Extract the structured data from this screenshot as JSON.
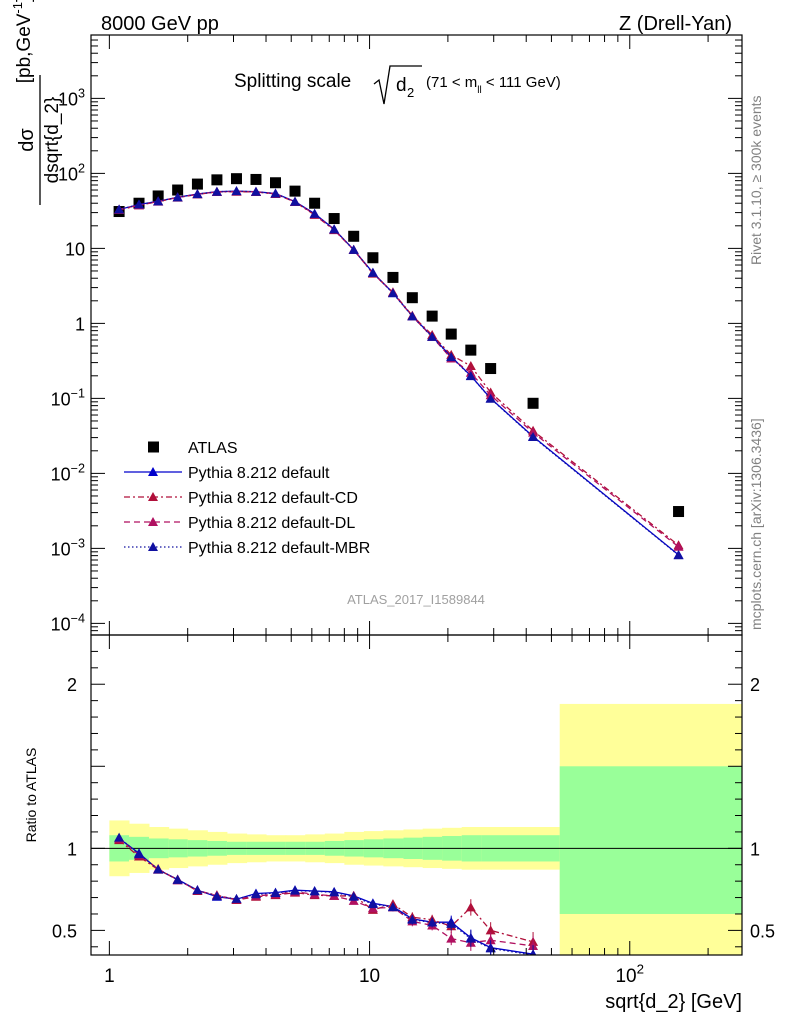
{
  "header": {
    "left": "8000 GeV pp",
    "right": "Z (Drell-Yan)"
  },
  "plot_title": {
    "main": "Splitting scale",
    "radicand": "d",
    "radicand_sub": "2",
    "range_pre": "(71 < m",
    "range_sub": "ll",
    "range_post": " < 111 GeV)"
  },
  "side_labels": {
    "rivet": "Rivet 3.1.10, ≥ 300k events",
    "mcplots": "mcplots.cern.ch [arXiv:1306.3436]"
  },
  "watermark": "ATLAS_2017_I1589844",
  "y_label_top": {
    "numerator": "dσ",
    "denominator": "dsqrt{d_2}",
    "units_pre": "[pb,GeV",
    "units_sup": "-1",
    "units_post": "]"
  },
  "y_label_bottom": "Ratio to ATLAS",
  "x_label": "sqrt{d_2} [GeV]",
  "colors": {
    "atlas": "#000000",
    "default": "#0000cc",
    "cd": "#b0103a",
    "dl": "#b01060",
    "mbr": "#1010a0",
    "band_inner": "#99ff99",
    "band_outer": "#ffff99"
  },
  "legend": [
    {
      "label": "ATLAS"
    },
    {
      "label": "Pythia 8.212 default"
    },
    {
      "label": "Pythia 8.212 default-CD"
    },
    {
      "label": "Pythia 8.212 default-DL"
    },
    {
      "label": "Pythia 8.212 default-MBR"
    }
  ],
  "chart_data": [
    {
      "type": "scatter",
      "panel": "main",
      "x_scale": "log",
      "y_scale": "log",
      "xlim": [
        0.85,
        270
      ],
      "ylim": [
        7e-05,
        7000
      ],
      "x_ticks": [
        {
          "value": 1,
          "label": "1"
        },
        {
          "value": 10,
          "label": "10"
        },
        {
          "value": 100,
          "label": "10",
          "sup": "2"
        }
      ],
      "y_ticks": [
        {
          "value": 0.0001,
          "label": "10",
          "sup": "−4"
        },
        {
          "value": 0.001,
          "label": "10",
          "sup": "−3"
        },
        {
          "value": 0.01,
          "label": "10",
          "sup": "−2"
        },
        {
          "value": 0.1,
          "label": "10",
          "sup": "−1"
        },
        {
          "value": 1,
          "label": "1"
        },
        {
          "value": 10,
          "label": "10"
        },
        {
          "value": 100,
          "label": "10",
          "sup": "2"
        },
        {
          "value": 1000,
          "label": "10",
          "sup": "3"
        }
      ],
      "x": [
        1.09,
        1.3,
        1.54,
        1.83,
        2.18,
        2.59,
        3.08,
        3.66,
        4.35,
        5.17,
        6.15,
        7.31,
        8.69,
        10.3,
        12.3,
        14.6,
        17.4,
        20.6,
        24.5,
        29.2,
        42.5,
        154
      ],
      "series": [
        {
          "name": "ATLAS",
          "style": "square",
          "values": [
            31,
            40,
            50,
            60,
            72,
            82,
            85,
            83,
            75,
            58,
            40,
            25,
            14.5,
            7.5,
            4.1,
            2.2,
            1.25,
            0.72,
            0.44,
            0.25,
            0.086,
            0.0031
          ]
        },
        {
          "name": "Pythia 8.212 default",
          "style": "solid",
          "values": [
            33,
            38.5,
            42.5,
            48,
            53,
            57,
            58,
            57,
            54,
            42,
            29,
            18,
            9.6,
            4.75,
            2.55,
            1.25,
            0.67,
            0.36,
            0.2,
            0.1,
            0.031,
            0.00082
          ]
        },
        {
          "name": "Pythia 8.212 default-CD",
          "style": "dashdot",
          "values": [
            32.5,
            37.5,
            42,
            47.5,
            52.5,
            56.5,
            57,
            56.5,
            53,
            41.5,
            28,
            17.5,
            9.6,
            4.6,
            2.6,
            1.27,
            0.7,
            0.38,
            0.27,
            0.12,
            0.037,
            0.0011
          ]
        },
        {
          "name": "Pythia 8.212 default-DL",
          "style": "dashed",
          "values": [
            33,
            37.8,
            42.2,
            47.8,
            52.8,
            56.8,
            57.5,
            56.8,
            53.5,
            41.8,
            28.5,
            17.8,
            9.5,
            4.7,
            2.55,
            1.24,
            0.66,
            0.34,
            0.22,
            0.11,
            0.035,
            0.00105
          ]
        },
        {
          "name": "Pythia 8.212 default-MBR",
          "style": "dotted",
          "values": [
            33,
            38.4,
            42.4,
            47.9,
            52.9,
            56.9,
            57.9,
            56.9,
            53.9,
            41.9,
            28.9,
            17.9,
            9.55,
            4.72,
            2.52,
            1.24,
            0.66,
            0.355,
            0.198,
            0.099,
            0.0305,
            0.00081
          ]
        }
      ]
    },
    {
      "type": "line",
      "panel": "ratio",
      "x_scale": "log",
      "xlim": [
        0.85,
        270
      ],
      "ylim": [
        0.35,
        2.3
      ],
      "y_ticks": [
        {
          "value": 0.5,
          "label": "0.5"
        },
        {
          "value": 1,
          "label": "1"
        },
        {
          "value": 2,
          "label": "2"
        }
      ],
      "reference_line": 1,
      "bands": {
        "edges": [
          1,
          1.19,
          1.42,
          1.69,
          2.0,
          2.38,
          2.83,
          3.37,
          4.0,
          4.76,
          5.66,
          6.73,
          8.0,
          9.51,
          11.3,
          13.5,
          16.0,
          19.0,
          22.6,
          26.9,
          32.0,
          53.8,
          270
        ],
        "inner_lo": [
          0.92,
          0.93,
          0.94,
          0.945,
          0.95,
          0.955,
          0.96,
          0.96,
          0.96,
          0.96,
          0.96,
          0.955,
          0.95,
          0.945,
          0.94,
          0.935,
          0.93,
          0.925,
          0.92,
          0.92,
          0.92,
          0.6
        ],
        "inner_hi": [
          1.08,
          1.07,
          1.06,
          1.055,
          1.05,
          1.045,
          1.04,
          1.04,
          1.04,
          1.04,
          1.04,
          1.045,
          1.05,
          1.055,
          1.06,
          1.065,
          1.07,
          1.075,
          1.08,
          1.08,
          1.08,
          1.5
        ],
        "outer_lo": [
          0.83,
          0.85,
          0.87,
          0.88,
          0.89,
          0.9,
          0.91,
          0.915,
          0.92,
          0.92,
          0.915,
          0.91,
          0.9,
          0.895,
          0.89,
          0.885,
          0.88,
          0.875,
          0.87,
          0.87,
          0.87,
          0.35
        ],
        "outer_hi": [
          1.17,
          1.15,
          1.13,
          1.12,
          1.11,
          1.1,
          1.09,
          1.085,
          1.08,
          1.08,
          1.085,
          1.09,
          1.1,
          1.105,
          1.11,
          1.115,
          1.12,
          1.125,
          1.13,
          1.13,
          1.13,
          1.88
        ]
      },
      "x": [
        1.09,
        1.3,
        1.54,
        1.83,
        2.18,
        2.59,
        3.08,
        3.66,
        4.35,
        5.17,
        6.15,
        7.31,
        8.69,
        10.3,
        12.3,
        14.6,
        17.4,
        20.6,
        24.5,
        29.2,
        42.5
      ],
      "series": [
        {
          "name": "Pythia 8.212 default",
          "style": "solid",
          "values": [
            1.06,
            0.97,
            0.87,
            0.81,
            0.745,
            0.705,
            0.69,
            0.725,
            0.73,
            0.745,
            0.74,
            0.735,
            0.71,
            0.665,
            0.645,
            0.57,
            0.55,
            0.55,
            0.455,
            0.395,
            0.355
          ],
          "errors": [
            0.02,
            0.02,
            0.015,
            0.015,
            0.015,
            0.015,
            0.015,
            0.015,
            0.015,
            0.015,
            0.015,
            0.015,
            0.02,
            0.02,
            0.025,
            0.03,
            0.03,
            0.04,
            0.05,
            0.05,
            0.06
          ]
        },
        {
          "name": "Pythia 8.212 default-CD",
          "style": "dashdot",
          "values": [
            1.05,
            0.95,
            0.87,
            0.81,
            0.74,
            0.715,
            0.685,
            0.705,
            0.715,
            0.73,
            0.715,
            0.71,
            0.71,
            0.625,
            0.66,
            0.58,
            0.565,
            0.525,
            0.64,
            0.5,
            0.43
          ],
          "errors": [
            0.02,
            0.02,
            0.015,
            0.015,
            0.015,
            0.015,
            0.015,
            0.015,
            0.015,
            0.015,
            0.015,
            0.015,
            0.02,
            0.02,
            0.025,
            0.03,
            0.03,
            0.04,
            0.05,
            0.05,
            0.06
          ]
        },
        {
          "name": "Pythia 8.212 default-DL",
          "style": "dashed",
          "values": [
            1.06,
            0.96,
            0.875,
            0.805,
            0.745,
            0.71,
            0.69,
            0.71,
            0.72,
            0.735,
            0.72,
            0.71,
            0.68,
            0.635,
            0.64,
            0.555,
            0.53,
            0.45,
            0.425,
            0.44,
            0.405
          ],
          "errors": [
            0.02,
            0.02,
            0.015,
            0.015,
            0.015,
            0.015,
            0.015,
            0.015,
            0.015,
            0.015,
            0.015,
            0.015,
            0.02,
            0.02,
            0.025,
            0.03,
            0.03,
            0.04,
            0.05,
            0.05,
            0.06
          ]
        },
        {
          "name": "Pythia 8.212 default-MBR",
          "style": "dotted",
          "values": [
            1.065,
            0.965,
            0.872,
            0.808,
            0.745,
            0.708,
            0.692,
            0.72,
            0.728,
            0.742,
            0.738,
            0.732,
            0.705,
            0.66,
            0.642,
            0.565,
            0.548,
            0.54,
            0.45,
            0.39,
            0.35
          ],
          "errors": [
            0.02,
            0.02,
            0.015,
            0.015,
            0.015,
            0.015,
            0.015,
            0.015,
            0.015,
            0.015,
            0.015,
            0.015,
            0.02,
            0.02,
            0.025,
            0.03,
            0.03,
            0.04,
            0.05,
            0.05,
            0.06
          ]
        }
      ]
    }
  ]
}
